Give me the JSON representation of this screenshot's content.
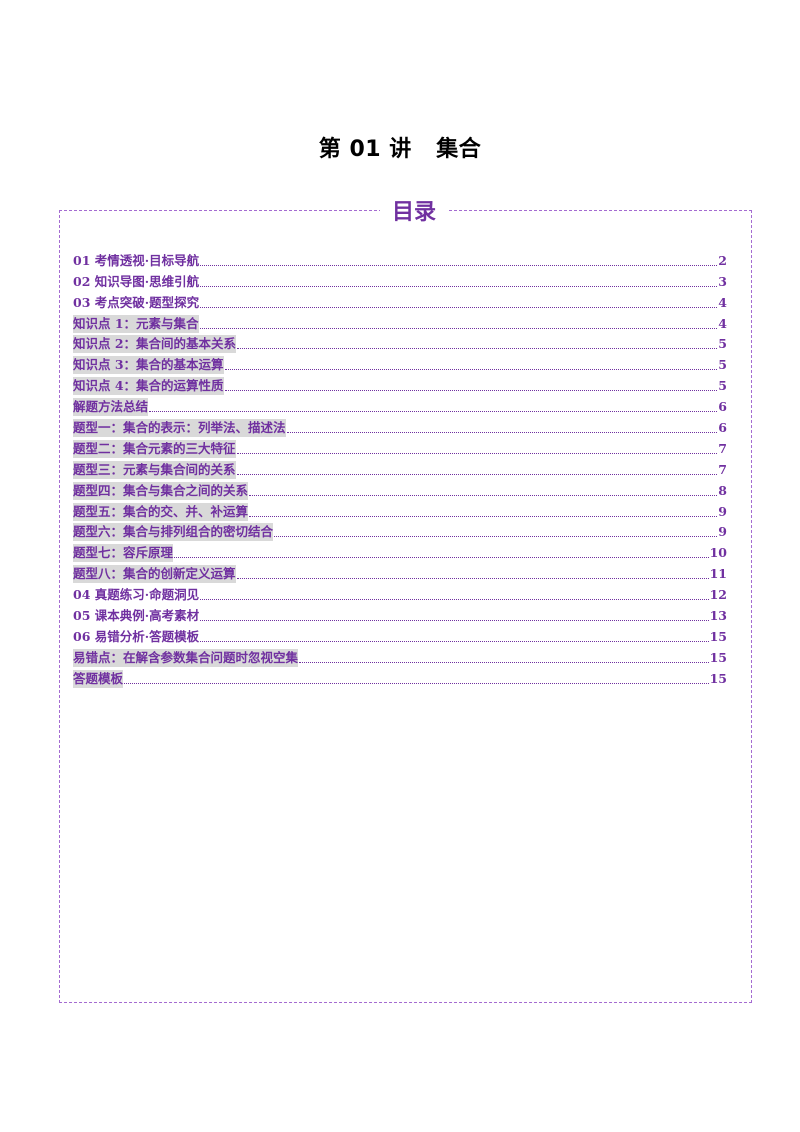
{
  "page_title": "第 01 讲   集合",
  "toc": {
    "heading": "目录",
    "entries": [
      {
        "label": "01 考情透视·目标导航",
        "page": "2",
        "kind": "main"
      },
      {
        "label": "02 知识导图·思维引航",
        "page": "3",
        "kind": "main"
      },
      {
        "label": "03 考点突破·题型探究",
        "page": "4",
        "kind": "main"
      },
      {
        "label": "知识点 1：元素与集合",
        "page": "4",
        "kind": "sub"
      },
      {
        "label": "知识点 2：集合间的基本关系",
        "page": "5",
        "kind": "sub"
      },
      {
        "label": "知识点 3：集合的基本运算",
        "page": "5",
        "kind": "sub"
      },
      {
        "label": "知识点 4：集合的运算性质",
        "page": "5",
        "kind": "sub"
      },
      {
        "label": "解题方法总结",
        "page": "6",
        "kind": "sub"
      },
      {
        "label": "题型一：集合的表示：列举法、描述法",
        "page": "6",
        "kind": "sub"
      },
      {
        "label": "题型二：集合元素的三大特征",
        "page": "7",
        "kind": "sub"
      },
      {
        "label": "题型三：元素与集合间的关系",
        "page": "7",
        "kind": "sub"
      },
      {
        "label": "题型四：集合与集合之间的关系",
        "page": "8",
        "kind": "sub"
      },
      {
        "label": "题型五：集合的交、并、补运算",
        "page": "9",
        "kind": "sub"
      },
      {
        "label": "题型六：集合与排列组合的密切结合",
        "page": "9",
        "kind": "sub"
      },
      {
        "label": "题型七：容斥原理",
        "page": "10",
        "kind": "sub"
      },
      {
        "label": "题型八：集合的创新定义运算",
        "page": "11",
        "kind": "sub"
      },
      {
        "label": "04 真题练习·命题洞见",
        "page": "12",
        "kind": "main"
      },
      {
        "label": "05 课本典例·高考素材",
        "page": "13",
        "kind": "main"
      },
      {
        "label": "06 易错分析·答题模板",
        "page": "15",
        "kind": "main"
      },
      {
        "label": "易错点：在解含参数集合问题时忽视空集",
        "page": "15",
        "kind": "sub"
      },
      {
        "label": "答题模板",
        "page": "15",
        "kind": "sub"
      }
    ]
  }
}
